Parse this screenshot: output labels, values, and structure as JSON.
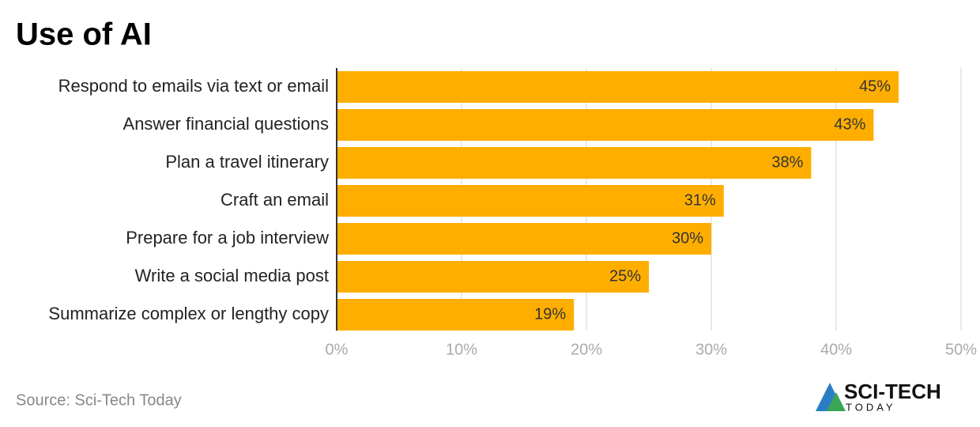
{
  "chart_data": {
    "type": "bar",
    "orientation": "horizontal",
    "title": "Use of AI",
    "categories": [
      "Respond to emails via text or email",
      "Answer financial questions",
      "Plan a travel itinerary",
      "Craft an email",
      "Prepare for a job interview",
      "Write a social media post",
      "Summarize complex or lengthy copy"
    ],
    "values": [
      45,
      43,
      38,
      31,
      30,
      25,
      19
    ],
    "value_labels": [
      "45%",
      "43%",
      "38%",
      "31%",
      "30%",
      "25%",
      "19%"
    ],
    "color": "#ffae00",
    "xlim": [
      0,
      50
    ],
    "xticks": [
      {
        "value": 0,
        "label": "0%"
      },
      {
        "value": 10,
        "label": "10%"
      },
      {
        "value": 20,
        "label": "20%"
      },
      {
        "value": 30,
        "label": "30%"
      },
      {
        "value": 40,
        "label": "40%"
      },
      {
        "value": 50,
        "label": "50%"
      }
    ],
    "grid": true,
    "source": "Source: Sci-Tech Today"
  },
  "logo": {
    "name": "SCI-TECH",
    "tagline": "TODAY"
  }
}
